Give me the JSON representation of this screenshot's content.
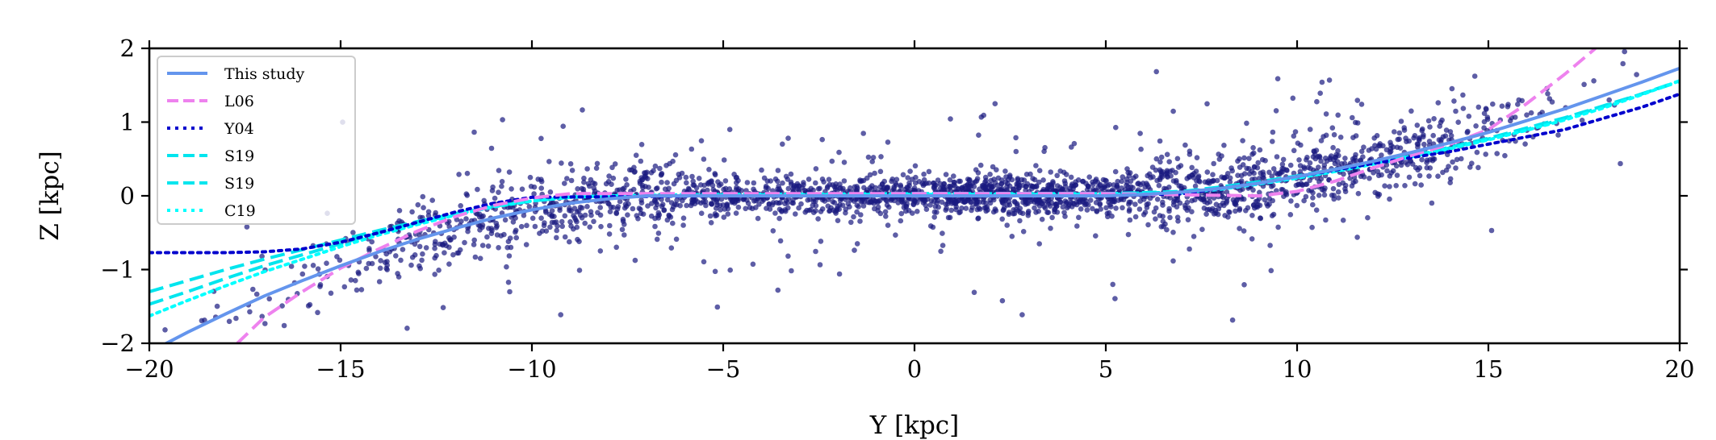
{
  "chart_data": {
    "type": "scatter",
    "xlabel": "Y [kpc]",
    "ylabel": "Z [kpc]",
    "xlim": [
      -20,
      20
    ],
    "ylim": [
      -2,
      2
    ],
    "xticks": [
      -20,
      -15,
      -10,
      -5,
      0,
      5,
      10,
      15,
      20
    ],
    "xtick_labels": [
      "−20",
      "−15",
      "−10",
      "−5",
      "0",
      "5",
      "10",
      "15",
      "20"
    ],
    "yticks": [
      -2,
      -1,
      0,
      1,
      2
    ],
    "ytick_labels": [
      "−2",
      "−1",
      "0",
      "1",
      "2"
    ],
    "grid": false,
    "legend_position": "upper left",
    "scatter_color": "#1a1a80",
    "scatter_count": 2600,
    "series": [
      {
        "name": "This study",
        "color": "#6495ed",
        "style": "solid",
        "x": [
          -20,
          -19,
          -18,
          -17,
          -16,
          -15,
          -14,
          -13,
          -12,
          -11,
          -10,
          -9,
          -8,
          -7,
          -6,
          -5,
          0,
          5,
          6,
          7,
          8,
          9,
          10,
          11,
          12,
          13,
          14,
          15,
          16,
          17,
          18,
          19,
          20
        ],
        "y": [
          -2.12,
          -1.85,
          -1.6,
          -1.36,
          -1.15,
          -0.95,
          -0.76,
          -0.59,
          -0.44,
          -0.3,
          -0.19,
          -0.1,
          -0.04,
          0.0,
          0.0,
          0.0,
          0.0,
          0.0,
          0.02,
          0.05,
          0.1,
          0.17,
          0.26,
          0.36,
          0.47,
          0.59,
          0.72,
          0.86,
          1.02,
          1.18,
          1.36,
          1.54,
          1.73
        ]
      },
      {
        "name": "L06",
        "color": "#ee82ee",
        "style": "dashed",
        "x": [
          -17.7,
          -17,
          -16,
          -15,
          -14,
          -13,
          -12,
          -11,
          -10,
          -9,
          -5,
          0,
          5,
          9,
          10,
          11,
          12,
          13,
          14,
          15,
          16,
          17,
          17.8
        ],
        "y": [
          -2.0,
          -1.65,
          -1.3,
          -0.98,
          -0.72,
          -0.48,
          -0.28,
          -0.13,
          -0.03,
          0.03,
          0.03,
          0.03,
          0.03,
          0.0,
          0.06,
          0.2,
          0.38,
          0.55,
          0.7,
          0.9,
          1.25,
          1.65,
          2.0
        ]
      },
      {
        "name": "Y04",
        "color": "#0000cd",
        "style": "dotted",
        "x": [
          -20,
          -19,
          -18,
          -17,
          -16,
          -15,
          -14,
          -13,
          -12,
          -11,
          -10,
          -5,
          0,
          5,
          7,
          8,
          9,
          10,
          11,
          12,
          13,
          14,
          15,
          16,
          17,
          18,
          19,
          20
        ],
        "y": [
          -0.77,
          -0.77,
          -0.77,
          -0.76,
          -0.72,
          -0.63,
          -0.5,
          -0.36,
          -0.22,
          -0.1,
          -0.02,
          0.0,
          0.0,
          0.0,
          0.03,
          0.1,
          0.17,
          0.26,
          0.35,
          0.44,
          0.52,
          0.6,
          0.7,
          0.8,
          0.9,
          1.05,
          1.2,
          1.38
        ]
      },
      {
        "name": "S19",
        "color": "#00e5ee",
        "style": "dashed",
        "x": [
          -20,
          -19,
          -18,
          -17,
          -16,
          -15,
          -14,
          -13,
          -12,
          -11,
          -10,
          -9,
          -8,
          -5,
          0,
          5,
          7,
          8,
          9,
          10,
          11,
          12,
          13,
          14,
          15,
          16,
          17,
          18,
          19,
          20
        ],
        "y": [
          -1.47,
          -1.3,
          -1.12,
          -0.95,
          -0.8,
          -0.65,
          -0.5,
          -0.37,
          -0.25,
          -0.14,
          -0.06,
          -0.01,
          0.01,
          0.02,
          0.03,
          0.03,
          0.06,
          0.12,
          0.19,
          0.27,
          0.36,
          0.45,
          0.55,
          0.66,
          0.78,
          0.92,
          1.06,
          1.22,
          1.38,
          1.56
        ]
      },
      {
        "name": "S19",
        "color": "#00e5ee",
        "style": "dashed",
        "x": [
          -20,
          -19,
          -18,
          -17,
          -16,
          -15,
          -14,
          -13,
          -12,
          -11,
          -10,
          -9,
          -8,
          -5,
          0,
          5,
          7,
          8,
          9,
          10,
          11,
          12,
          13,
          14,
          15,
          16,
          17,
          18,
          19,
          20
        ],
        "y": [
          -1.3,
          -1.15,
          -1.0,
          -0.86,
          -0.73,
          -0.6,
          -0.47,
          -0.35,
          -0.24,
          -0.14,
          -0.07,
          -0.02,
          0.0,
          0.02,
          0.03,
          0.03,
          0.05,
          0.1,
          0.17,
          0.25,
          0.34,
          0.44,
          0.54,
          0.65,
          0.77,
          0.9,
          1.05,
          1.21,
          1.38,
          1.55
        ]
      },
      {
        "name": "C19",
        "color": "#00ffff",
        "style": "dotted",
        "x": [
          -20,
          -19,
          -18,
          -17,
          -16,
          -15,
          -14,
          -13,
          -12,
          -11,
          -10,
          -9,
          -8,
          -5,
          0,
          5,
          7,
          8,
          9,
          10,
          11,
          12,
          13,
          14,
          15,
          16,
          17,
          18,
          19,
          20
        ],
        "y": [
          -1.63,
          -1.42,
          -1.22,
          -1.03,
          -0.86,
          -0.69,
          -0.53,
          -0.39,
          -0.26,
          -0.15,
          -0.07,
          -0.02,
          0.0,
          0.01,
          0.02,
          0.02,
          0.04,
          0.09,
          0.16,
          0.24,
          0.33,
          0.43,
          0.53,
          0.64,
          0.76,
          0.89,
          1.03,
          1.19,
          1.37,
          1.56
        ]
      }
    ]
  }
}
